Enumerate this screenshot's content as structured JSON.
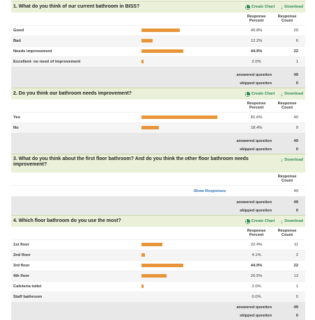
{
  "labels": {
    "create_chart": "Create Chart",
    "download": "Download",
    "response_percent": "Response Percent",
    "response_count": "Response Count",
    "answered": "answered question",
    "skipped": "skipped question",
    "show_responses": "Show Responses"
  },
  "accent_bar": "#e8953a",
  "accent_link": "#2e8b57",
  "q1": {
    "title": "1. What do you think of our current bathroom in BISS?",
    "rows": [
      {
        "label": "Good",
        "pct": "40.8%",
        "count": "20",
        "value": 40.8
      },
      {
        "label": "Bad",
        "pct": "12.2%",
        "count": "6",
        "value": 12.2
      },
      {
        "label": "Needs improvement",
        "pct": "44.9%",
        "count": "22",
        "value": 44.9
      },
      {
        "label": "Excellent- no need of improvement",
        "pct": "2.0%",
        "count": "1",
        "value": 2.0
      }
    ],
    "answered": "49",
    "skipped": "0"
  },
  "q2": {
    "title": "2. Do you think our bathroom needs improvement?",
    "rows": [
      {
        "label": "Yes",
        "pct": "81.6%",
        "count": "40",
        "value": 81.6
      },
      {
        "label": "No",
        "pct": "18.4%",
        "count": "9",
        "value": 18.4
      }
    ],
    "answered": "49",
    "skipped": "0"
  },
  "q3": {
    "title": "3. What do you think about the first floor bathroom? And do you think the other floor bathroom needs improvement?",
    "count": "49",
    "answered": "49",
    "skipped": "0"
  },
  "q4": {
    "title": "4. Which floor bathroom do you use the most?",
    "rows": [
      {
        "label": "1st floor",
        "pct": "22.4%",
        "count": "11",
        "value": 22.4
      },
      {
        "label": "2nd floor",
        "pct": "4.1%",
        "count": "2",
        "value": 4.1
      },
      {
        "label": "3rd floor",
        "pct": "44.9%",
        "count": "22",
        "value": 44.9
      },
      {
        "label": "4th floor",
        "pct": "26.5%",
        "count": "13",
        "value": 26.5
      },
      {
        "label": "Cafeteria toilet",
        "pct": "2.0%",
        "count": "1",
        "value": 2.0
      },
      {
        "label": "Staff bathroom",
        "pct": "0.0%",
        "count": "0",
        "value": 0.0
      }
    ],
    "answered": "49",
    "skipped": "0"
  }
}
